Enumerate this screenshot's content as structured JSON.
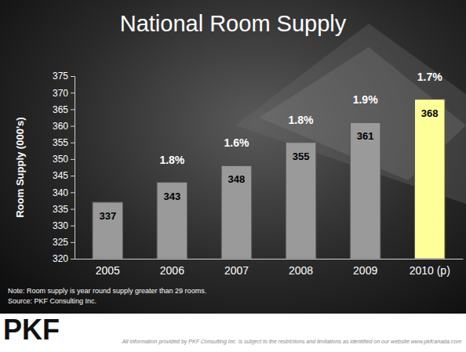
{
  "chart_data": {
    "type": "bar",
    "title": "National Room Supply",
    "y_label": "Room Supply (000's)",
    "categories": [
      "2005",
      "2006",
      "2007",
      "2008",
      "2009",
      "2010 (p)"
    ],
    "values": [
      337,
      343,
      348,
      355,
      361,
      368
    ],
    "colors": [
      "#9a9a9a",
      "#9a9a9a",
      "#9a9a9a",
      "#9a9a9a",
      "#9a9a9a",
      "#ffff99"
    ],
    "growth_labels": [
      null,
      "1.8%",
      "1.6%",
      "1.8%",
      "1.9%",
      "1.7%"
    ],
    "ylim": [
      320,
      375
    ],
    "yticks": [
      320,
      325,
      330,
      335,
      340,
      345,
      350,
      355,
      360,
      365,
      370,
      375
    ],
    "grid": false,
    "data_labels": true,
    "note": "Note:  Room supply is year round supply greater than 29 rooms.",
    "source": "Source:  PKF Consulting Inc.",
    "logo": "PKF",
    "footer": "All information provided by PKF Consulting Inc. is subject to the restrictions and limitations as identified on our website www.pkfcanada.com"
  }
}
